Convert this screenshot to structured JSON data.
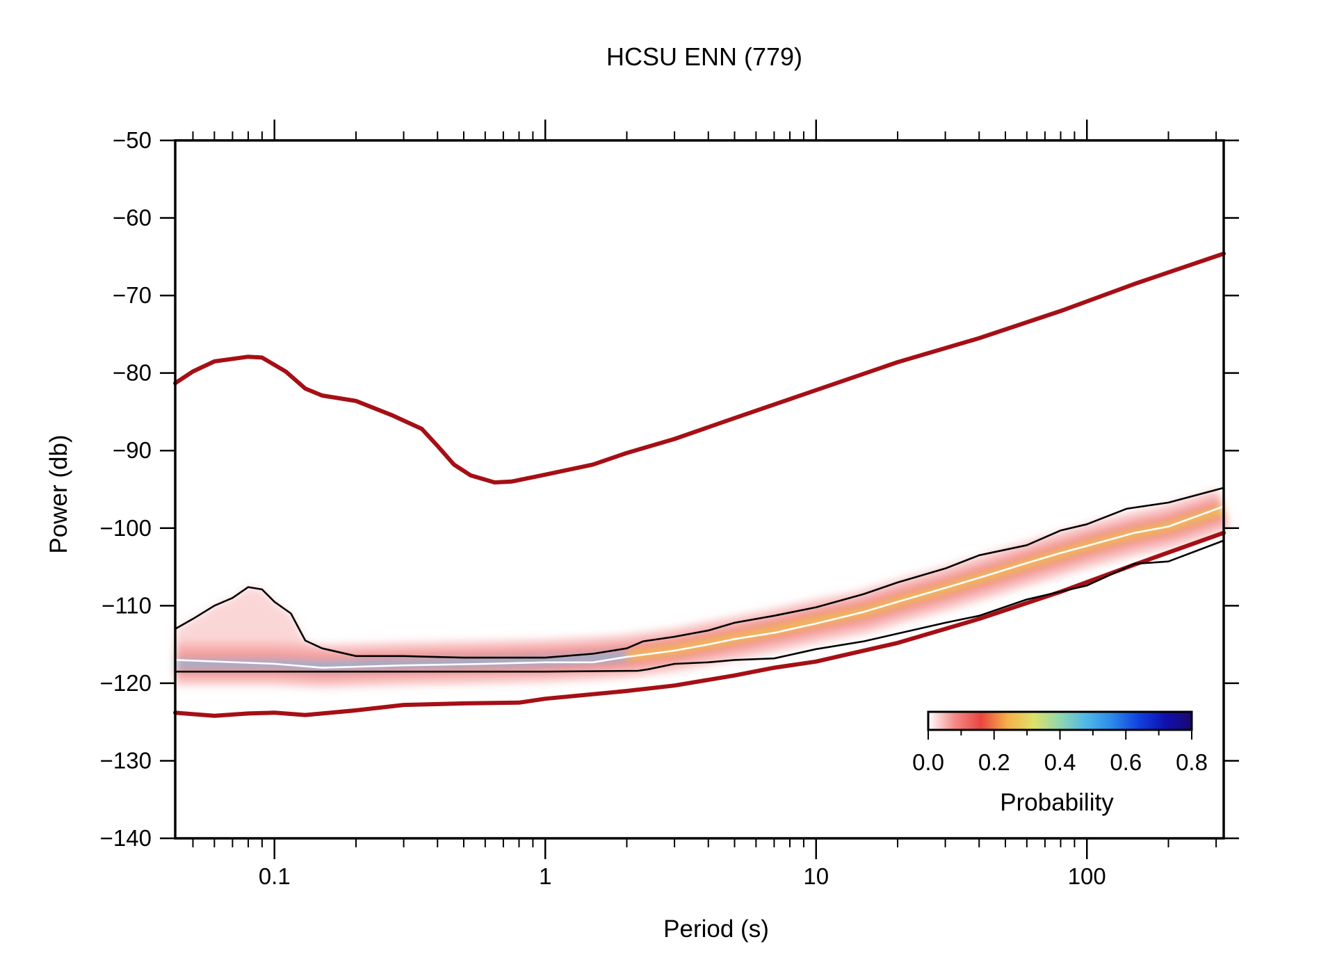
{
  "chart_data": {
    "type": "line",
    "title": "HCSU ENN (779)",
    "xlabel": "Period (s)",
    "ylabel": "Power (db)",
    "x_scale": "log",
    "xlim": [
      0.043,
      320
    ],
    "ylim": [
      -140,
      -50
    ],
    "x_major_ticks": [
      0.1,
      1,
      10,
      100
    ],
    "x_tick_labels": [
      "0.1",
      "1",
      "10",
      "100"
    ],
    "y_ticks": [
      -50,
      -60,
      -70,
      -80,
      -90,
      -100,
      -110,
      -120,
      -130,
      -140
    ],
    "y_tick_labels": [
      "−50",
      "−60",
      "−70",
      "−80",
      "−90",
      "−100",
      "−110",
      "−120",
      "−130",
      "−140"
    ],
    "grid": false,
    "colors": {
      "noise_model": "#a50f15",
      "percentile": "#000000",
      "mode": "#ffffff",
      "frame": "#000000"
    },
    "series": [
      {
        "key": "nhnm",
        "values": [
          [
            0.043,
            -81.3
          ],
          [
            0.05,
            -79.8
          ],
          [
            0.06,
            -78.5
          ],
          [
            0.08,
            -77.9
          ],
          [
            0.09,
            -78.0
          ],
          [
            0.11,
            -79.8
          ],
          [
            0.13,
            -82.0
          ],
          [
            0.15,
            -82.9
          ],
          [
            0.2,
            -83.6
          ],
          [
            0.27,
            -85.4
          ],
          [
            0.35,
            -87.2
          ],
          [
            0.4,
            -89.4
          ],
          [
            0.46,
            -91.8
          ],
          [
            0.53,
            -93.2
          ],
          [
            0.65,
            -94.1
          ],
          [
            0.75,
            -94.0
          ],
          [
            1.0,
            -93.1
          ],
          [
            1.5,
            -91.8
          ],
          [
            2.0,
            -90.3
          ],
          [
            3.0,
            -88.5
          ],
          [
            5.0,
            -85.8
          ],
          [
            10.0,
            -82.2
          ],
          [
            20.0,
            -78.6
          ],
          [
            40.0,
            -75.5
          ],
          [
            80.0,
            -72.0
          ],
          [
            150.0,
            -68.5
          ],
          [
            320.0,
            -64.6
          ]
        ]
      },
      {
        "key": "nlnm",
        "values": [
          [
            0.043,
            -123.8
          ],
          [
            0.06,
            -124.2
          ],
          [
            0.08,
            -123.9
          ],
          [
            0.1,
            -123.8
          ],
          [
            0.13,
            -124.1
          ],
          [
            0.2,
            -123.5
          ],
          [
            0.3,
            -122.8
          ],
          [
            0.5,
            -122.6
          ],
          [
            0.8,
            -122.5
          ],
          [
            1.0,
            -122.0
          ],
          [
            2.0,
            -121.0
          ],
          [
            3.0,
            -120.3
          ],
          [
            5.0,
            -119.0
          ],
          [
            7.0,
            -118.0
          ],
          [
            10.0,
            -117.2
          ],
          [
            20.0,
            -114.8
          ],
          [
            40.0,
            -111.7
          ],
          [
            80.0,
            -108.2
          ],
          [
            150.0,
            -104.7
          ],
          [
            320.0,
            -100.6
          ]
        ]
      },
      {
        "key": "p90",
        "values": [
          [
            0.043,
            -113.0
          ],
          [
            0.05,
            -111.7
          ],
          [
            0.06,
            -110.0
          ],
          [
            0.07,
            -109.0
          ],
          [
            0.08,
            -107.6
          ],
          [
            0.09,
            -107.9
          ],
          [
            0.1,
            -109.5
          ],
          [
            0.115,
            -111.0
          ],
          [
            0.13,
            -114.5
          ],
          [
            0.15,
            -115.5
          ],
          [
            0.2,
            -116.5
          ],
          [
            0.3,
            -116.5
          ],
          [
            0.5,
            -116.7
          ],
          [
            1.0,
            -116.7
          ],
          [
            1.5,
            -116.2
          ],
          [
            2.0,
            -115.5
          ],
          [
            2.3,
            -114.6
          ],
          [
            3.0,
            -114.0
          ],
          [
            4.0,
            -113.2
          ],
          [
            5.0,
            -112.2
          ],
          [
            7.0,
            -111.3
          ],
          [
            10.0,
            -110.2
          ],
          [
            15.0,
            -108.5
          ],
          [
            20.0,
            -107.0
          ],
          [
            30.0,
            -105.2
          ],
          [
            40.0,
            -103.5
          ],
          [
            60.0,
            -102.2
          ],
          [
            80.0,
            -100.3
          ],
          [
            100.0,
            -99.5
          ],
          [
            140.0,
            -97.5
          ],
          [
            200.0,
            -96.7
          ],
          [
            320.0,
            -94.8
          ]
        ]
      },
      {
        "key": "p10",
        "values": [
          [
            0.043,
            -118.5
          ],
          [
            0.5,
            -118.5
          ],
          [
            1.0,
            -118.5
          ],
          [
            2.2,
            -118.4
          ],
          [
            2.4,
            -118.2
          ],
          [
            3.0,
            -117.5
          ],
          [
            4.0,
            -117.3
          ],
          [
            5.0,
            -117.0
          ],
          [
            7.0,
            -116.8
          ],
          [
            10.0,
            -115.6
          ],
          [
            15.0,
            -114.6
          ],
          [
            20.0,
            -113.6
          ],
          [
            30.0,
            -112.2
          ],
          [
            40.0,
            -111.3
          ],
          [
            60.0,
            -109.2
          ],
          [
            100.0,
            -107.4
          ],
          [
            150.0,
            -104.6
          ],
          [
            200.0,
            -104.3
          ],
          [
            320.0,
            -101.6
          ]
        ]
      },
      {
        "key": "mode",
        "values": [
          [
            0.043,
            -117.0
          ],
          [
            0.1,
            -117.5
          ],
          [
            0.15,
            -118.0
          ],
          [
            0.3,
            -117.7
          ],
          [
            0.6,
            -117.5
          ],
          [
            1.0,
            -117.3
          ],
          [
            1.5,
            -117.3
          ],
          [
            2.0,
            -116.6
          ],
          [
            3.0,
            -115.8
          ],
          [
            4.0,
            -115.0
          ],
          [
            5.0,
            -114.3
          ],
          [
            7.0,
            -113.5
          ],
          [
            10.0,
            -112.3
          ],
          [
            15.0,
            -110.8
          ],
          [
            20.0,
            -109.5
          ],
          [
            30.0,
            -107.7
          ],
          [
            40.0,
            -106.4
          ],
          [
            60.0,
            -104.5
          ],
          [
            80.0,
            -103.2
          ],
          [
            100.0,
            -102.3
          ],
          [
            150.0,
            -100.6
          ],
          [
            200.0,
            -99.8
          ],
          [
            320.0,
            -97.2
          ]
        ]
      }
    ],
    "probability_band": [
      [
        0.043,
        -117.5
      ],
      [
        0.1,
        -117.5
      ],
      [
        0.15,
        -117.8
      ],
      [
        0.3,
        -117.5
      ],
      [
        0.6,
        -117.3
      ],
      [
        1.0,
        -117.1
      ],
      [
        1.5,
        -116.8
      ],
      [
        2.0,
        -116.5
      ],
      [
        3.0,
        -115.7
      ],
      [
        5.0,
        -114.2
      ],
      [
        7.0,
        -113.2
      ],
      [
        10.0,
        -112.0
      ],
      [
        15.0,
        -110.8
      ],
      [
        20.0,
        -109.5
      ],
      [
        30.0,
        -107.8
      ],
      [
        40.0,
        -106.5
      ],
      [
        60.0,
        -104.6
      ],
      [
        80.0,
        -103.3
      ],
      [
        100.0,
        -102.3
      ],
      [
        150.0,
        -100.7
      ],
      [
        200.0,
        -99.8
      ],
      [
        320.0,
        -97.6
      ]
    ],
    "colorbar": {
      "label": "Probability",
      "range": [
        0.0,
        0.8
      ],
      "ticks": [
        0.0,
        0.2,
        0.4,
        0.6,
        0.8
      ],
      "tick_labels": [
        "0.0",
        "0.2",
        "0.4",
        "0.6",
        "0.8"
      ],
      "stops": [
        {
          "value": 0.0,
          "color": "#ffffff"
        },
        {
          "value": 0.08,
          "color": "#f48a8a"
        },
        {
          "value": 0.16,
          "color": "#e8463f"
        },
        {
          "value": 0.24,
          "color": "#f5b04a"
        },
        {
          "value": 0.32,
          "color": "#dfe06a"
        },
        {
          "value": 0.4,
          "color": "#8fd8b0"
        },
        {
          "value": 0.48,
          "color": "#4fb8e8"
        },
        {
          "value": 0.56,
          "color": "#2a88e8"
        },
        {
          "value": 0.64,
          "color": "#1040e0"
        },
        {
          "value": 0.72,
          "color": "#1010b0"
        },
        {
          "value": 0.8,
          "color": "#1a0870"
        }
      ]
    }
  }
}
